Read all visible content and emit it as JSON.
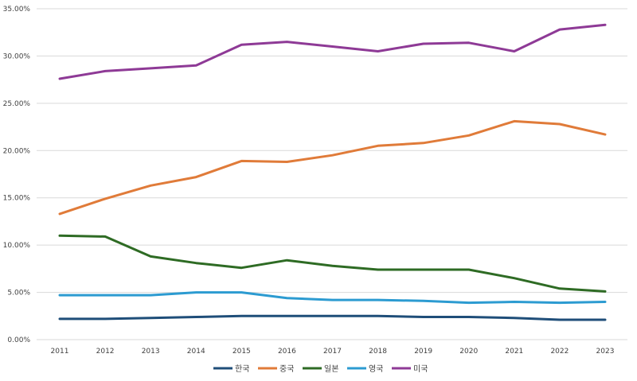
{
  "chart_data": {
    "type": "line",
    "title": "",
    "xlabel": "",
    "ylabel": "",
    "x": [
      "2011",
      "2012",
      "2013",
      "2014",
      "2015",
      "2016",
      "2017",
      "2018",
      "2019",
      "2020",
      "2021",
      "2022",
      "2023"
    ],
    "ylim": [
      0,
      35
    ],
    "yticks": [
      "0.00%",
      "5.00%",
      "10.00%",
      "15.00%",
      "20.00%",
      "25.00%",
      "30.00%",
      "35.00%"
    ],
    "grid": true,
    "legend_position": "bottom",
    "series": [
      {
        "name": "한국",
        "color": "#1f4e79",
        "values": [
          2.2,
          2.2,
          2.3,
          2.4,
          2.5,
          2.5,
          2.5,
          2.5,
          2.4,
          2.4,
          2.3,
          2.1,
          2.1
        ]
      },
      {
        "name": "중국",
        "color": "#e07b39",
        "values": [
          13.3,
          14.9,
          16.3,
          17.2,
          18.9,
          18.8,
          19.5,
          20.5,
          20.8,
          21.6,
          23.1,
          22.8,
          21.7
        ]
      },
      {
        "name": "일본",
        "color": "#2e6b24",
        "values": [
          11.0,
          10.9,
          8.8,
          8.1,
          7.6,
          8.4,
          7.8,
          7.4,
          7.4,
          7.4,
          6.5,
          5.4,
          5.1
        ]
      },
      {
        "name": "영국",
        "color": "#2c9bd1",
        "values": [
          4.7,
          4.7,
          4.7,
          5.0,
          5.0,
          4.4,
          4.2,
          4.2,
          4.1,
          3.9,
          4.0,
          3.9,
          4.0
        ]
      },
      {
        "name": "미국",
        "color": "#8e3a96",
        "values": [
          27.6,
          28.4,
          28.7,
          29.0,
          31.2,
          31.5,
          31.0,
          30.5,
          31.3,
          31.4,
          30.5,
          32.8,
          33.3
        ]
      }
    ]
  }
}
